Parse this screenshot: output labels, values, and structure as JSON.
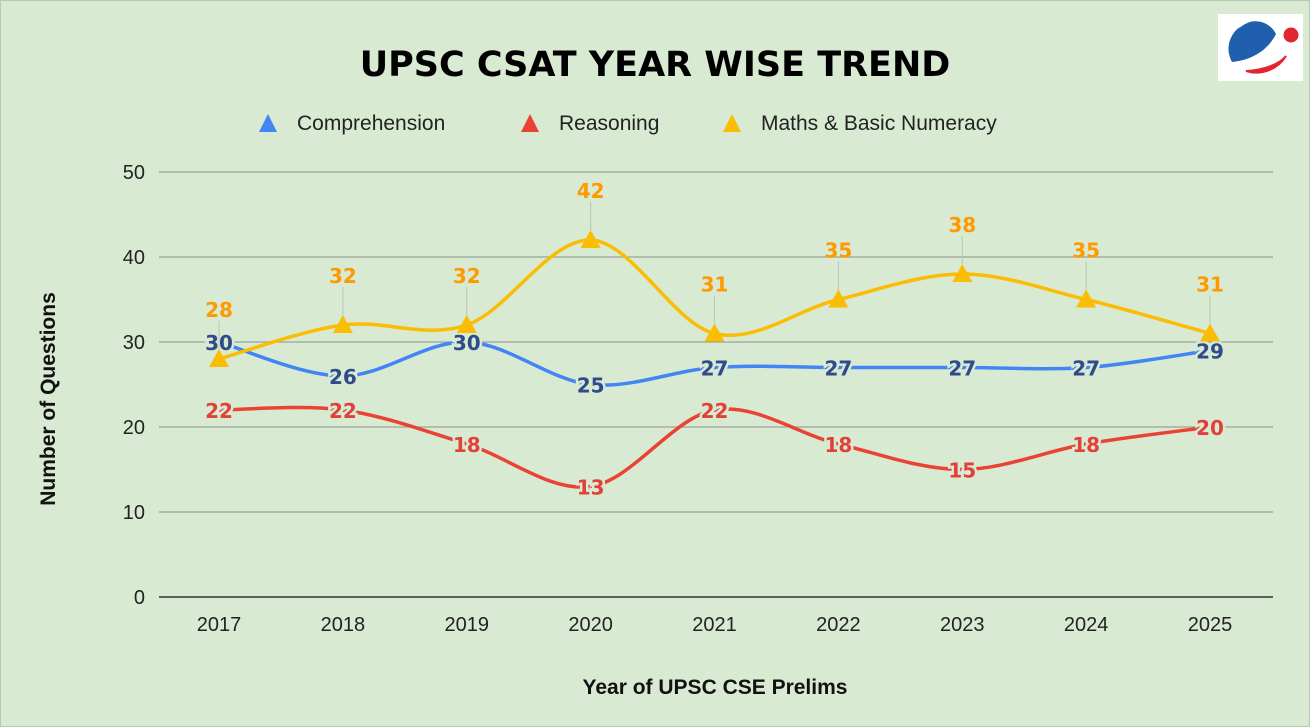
{
  "chart_data": {
    "type": "line",
    "title": "UPSC CSAT YEAR WISE TREND",
    "xlabel": "Year of UPSC CSE Prelims",
    "ylabel": "Number of Questions",
    "categories": [
      "2017",
      "2018",
      "2019",
      "2020",
      "2021",
      "2022",
      "2023",
      "2024",
      "2025"
    ],
    "ylim": [
      0,
      50
    ],
    "yticks": [
      0,
      10,
      20,
      30,
      40,
      50
    ],
    "grid": true,
    "smooth": true,
    "legend_position": "top",
    "series": [
      {
        "name": "Comprehension",
        "color": "#4285f4",
        "label_color": "#2f4b8a",
        "values": [
          30,
          26,
          30,
          25,
          27,
          27,
          27,
          27,
          29
        ]
      },
      {
        "name": "Reasoning",
        "color": "#ea4335",
        "label_color": "#e2413a",
        "values": [
          22,
          22,
          18,
          13,
          22,
          18,
          15,
          18,
          20
        ]
      },
      {
        "name": "Maths & Basic Numeracy",
        "color": "#fbbc04",
        "label_color": "#ff9900",
        "marker": "triangle",
        "values": [
          28,
          32,
          32,
          42,
          31,
          35,
          38,
          35,
          31
        ]
      }
    ]
  },
  "logo": {
    "icon": "globe-logo-icon",
    "colors": [
      "#1f5fae",
      "#e32530"
    ]
  }
}
